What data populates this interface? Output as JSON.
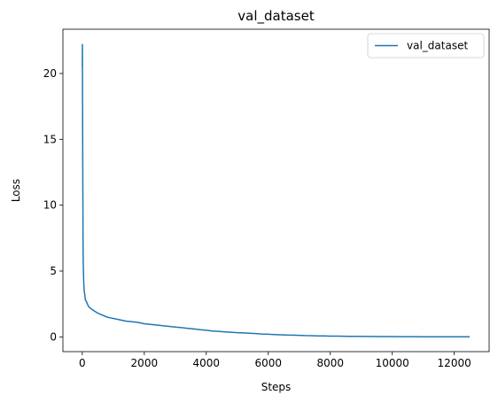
{
  "chart_data": {
    "type": "line",
    "title": "val_dataset",
    "xlabel": "Steps",
    "ylabel": "Loss",
    "xlim": [
      -625,
      13125
    ],
    "ylim": [
      -1.12,
      23.36
    ],
    "xticks": [
      0,
      2000,
      4000,
      6000,
      8000,
      10000,
      12000
    ],
    "yticks": [
      0,
      5,
      10,
      15,
      20
    ],
    "legend": {
      "position": "top-right",
      "entries": [
        "val_dataset"
      ]
    },
    "grid": false,
    "series": [
      {
        "name": "val_dataset",
        "color": "#1f77b4",
        "x": [
          0,
          5,
          10,
          15,
          20,
          25,
          30,
          40,
          50,
          60,
          80,
          100,
          150,
          200,
          300,
          400,
          500,
          600,
          700,
          800,
          900,
          1000,
          1200,
          1400,
          1600,
          1800,
          2000,
          2200,
          2400,
          2600,
          2800,
          3000,
          3200,
          3400,
          3600,
          3800,
          4000,
          4200,
          4400,
          4600,
          4800,
          5000,
          5200,
          5400,
          5600,
          5800,
          6000,
          6200,
          6400,
          6600,
          6800,
          7000,
          7200,
          7400,
          7600,
          7800,
          8000,
          8200,
          8400,
          8600,
          8800,
          9000,
          9200,
          9400,
          9600,
          9800,
          10000,
          10200,
          10400,
          10600,
          10800,
          11000,
          11200,
          11400,
          11600,
          11800,
          12000,
          12200,
          12400,
          12500
        ],
        "y": [
          20.5,
          22.2,
          17.5,
          13.0,
          9.5,
          7.4,
          5.8,
          4.6,
          4.0,
          3.5,
          3.2,
          2.8,
          2.6,
          2.3,
          2.1,
          1.95,
          1.8,
          1.7,
          1.6,
          1.5,
          1.45,
          1.4,
          1.3,
          1.2,
          1.15,
          1.1,
          1.0,
          0.95,
          0.9,
          0.85,
          0.8,
          0.75,
          0.7,
          0.65,
          0.6,
          0.55,
          0.5,
          0.45,
          0.42,
          0.38,
          0.35,
          0.32,
          0.3,
          0.27,
          0.25,
          0.22,
          0.2,
          0.18,
          0.16,
          0.14,
          0.13,
          0.12,
          0.1,
          0.09,
          0.08,
          0.07,
          0.06,
          0.055,
          0.05,
          0.045,
          0.04,
          0.035,
          0.03,
          0.028,
          0.025,
          0.022,
          0.02,
          0.018,
          0.016,
          0.015,
          0.014,
          0.013,
          0.012,
          0.011,
          0.01,
          0.01,
          0.01,
          0.01,
          0.01,
          0.01
        ]
      }
    ]
  }
}
